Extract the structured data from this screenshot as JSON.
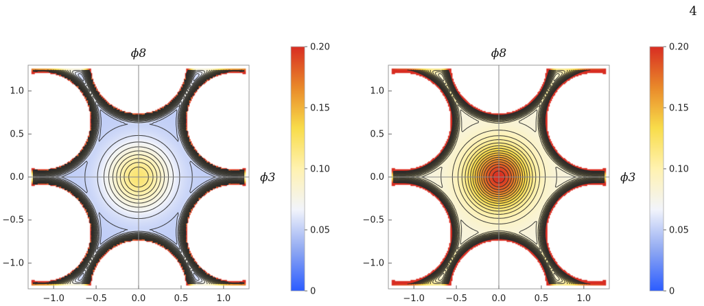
{
  "page_number": "4",
  "colors": {
    "colormap": [
      "#2b5cff",
      "#8fa8f2",
      "#f2f4fb",
      "#fff2b0",
      "#f8dc4a",
      "#e9892a",
      "#d82d22"
    ],
    "contour_line": "#2a2a2a",
    "axis": "#888888",
    "border": "#999999"
  },
  "chart_data": [
    {
      "type": "contour",
      "xlabel": "",
      "ylabel": "",
      "axis_labels": {
        "horizontal": "ϕ3",
        "vertical": "ϕ8"
      },
      "xlim": [
        -1.3,
        1.3
      ],
      "ylim": [
        -1.3,
        1.3
      ],
      "x_ticks": [
        "−1.0",
        "−0.5",
        "0.0",
        "0.5",
        "1.0"
      ],
      "y_ticks": [
        "−1.0",
        "−0.5",
        "0.0",
        "0.5",
        "1.0"
      ],
      "domain": "six-pointed star with concave edges",
      "center_value": 0.12,
      "minima": [
        {
          "x": 0.0,
          "y": 1.1,
          "value": 0.0
        },
        {
          "x": 0.0,
          "y": -1.1,
          "value": 0.0
        },
        {
          "x": 0.92,
          "y": 0.55,
          "value": 0.0
        },
        {
          "x": -0.92,
          "y": 0.55,
          "value": 0.0
        },
        {
          "x": 0.92,
          "y": -0.55,
          "value": 0.0
        },
        {
          "x": -0.92,
          "y": -0.55,
          "value": 0.0
        }
      ],
      "saddle_value": 0.05,
      "colorbar": {
        "ticks": [
          "0",
          "0.05",
          "0.10",
          "0.15",
          "0.20"
        ],
        "min": 0.0,
        "max": 0.2
      }
    },
    {
      "type": "contour",
      "xlabel": "",
      "ylabel": "",
      "axis_labels": {
        "horizontal": "ϕ3",
        "vertical": "ϕ8"
      },
      "xlim": [
        -1.3,
        1.3
      ],
      "ylim": [
        -1.3,
        1.3
      ],
      "x_ticks": [
        "−1.0",
        "−0.5",
        "0.0",
        "0.5",
        "1.0"
      ],
      "y_ticks": [
        "−1.0",
        "−0.5",
        "0.0",
        "0.5",
        "1.0"
      ],
      "domain": "six-pointed star with concave edges",
      "center_value": 0.2,
      "minima": [
        {
          "x": 0.0,
          "y": 1.1,
          "value": 0.0
        },
        {
          "x": -0.92,
          "y": -0.55,
          "value": 0.0
        },
        {
          "x": 0.92,
          "y": -0.55,
          "value": 0.02
        },
        {
          "x": 0.92,
          "y": 0.55,
          "value": 0.045
        },
        {
          "x": -0.92,
          "y": 0.55,
          "value": 0.045
        },
        {
          "x": 0.0,
          "y": -1.1,
          "value": 0.055
        }
      ],
      "saddle_value": 0.08,
      "colorbar": {
        "ticks": [
          "0",
          "0.05",
          "0.10",
          "0.15",
          "0.20"
        ],
        "min": 0.0,
        "max": 0.2
      }
    }
  ]
}
